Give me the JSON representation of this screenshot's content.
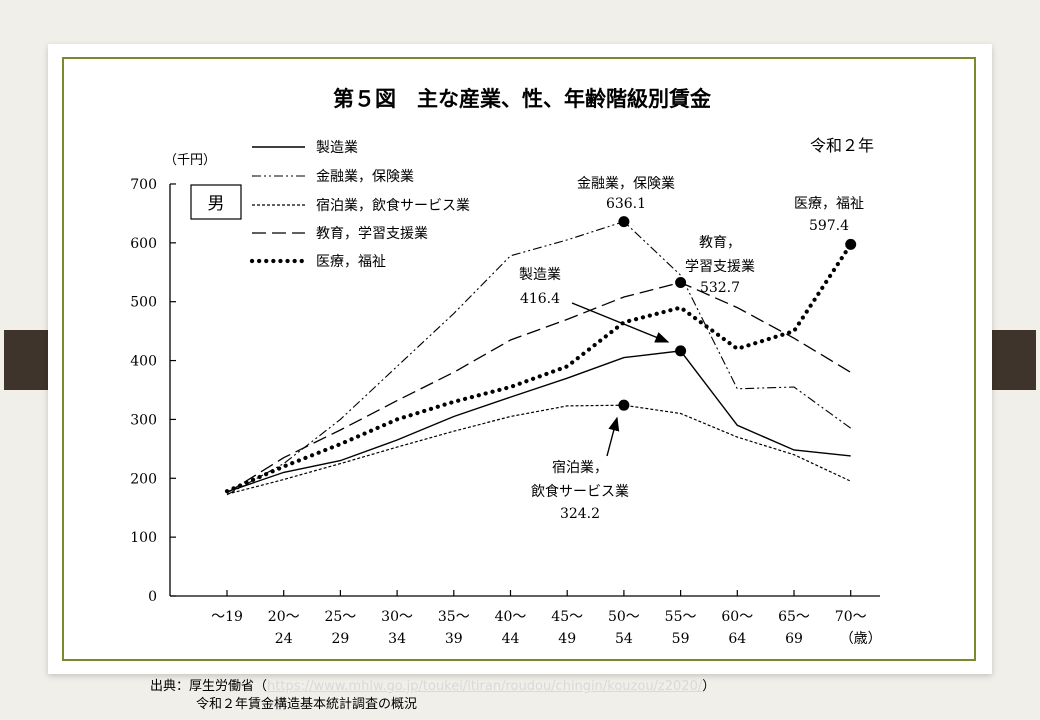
{
  "slide": {
    "source_label": "出典：厚生労働省（",
    "source_url": "https://www.mhlw.go.jp/toukei/itiran/roudou/chingin/kouzou/z2020/",
    "source_close": "）",
    "source_line2": "令和２年賃金構造基本統計調査の概況"
  },
  "chart_data": {
    "type": "line",
    "title": "第５図　主な産業、性、年齢階級別賃金",
    "year_label": "令和２年",
    "gender_label": "男",
    "ylabel": "（千円）",
    "x_unit_label": "（歳）",
    "ylim": [
      0,
      700
    ],
    "yticks": [
      0,
      100,
      200,
      300,
      400,
      500,
      600,
      700
    ],
    "categories": [
      {
        "top": "～19",
        "bottom": ""
      },
      {
        "top": "20～",
        "bottom": "24"
      },
      {
        "top": "25～",
        "bottom": "29"
      },
      {
        "top": "30～",
        "bottom": "34"
      },
      {
        "top": "35～",
        "bottom": "39"
      },
      {
        "top": "40～",
        "bottom": "44"
      },
      {
        "top": "45～",
        "bottom": "49"
      },
      {
        "top": "50～",
        "bottom": "54"
      },
      {
        "top": "55～",
        "bottom": "59"
      },
      {
        "top": "60～",
        "bottom": "64"
      },
      {
        "top": "65～",
        "bottom": "69"
      },
      {
        "top": "70～",
        "bottom": ""
      }
    ],
    "series": [
      {
        "name": "製造業",
        "style": "solid",
        "values": [
          177,
          210,
          230,
          265,
          305,
          338,
          370,
          405,
          416.4,
          290,
          248,
          238
        ]
      },
      {
        "name": "金融業，保険業",
        "style": "dashdot",
        "values": [
          172,
          225,
          300,
          390,
          480,
          578,
          605,
          636.1,
          545,
          352,
          355,
          285
        ]
      },
      {
        "name": "宿泊業，飲食サービス業",
        "style": "dotted-fine",
        "values": [
          173,
          198,
          225,
          253,
          280,
          305,
          323,
          324.2,
          310,
          270,
          240,
          195
        ]
      },
      {
        "name": "教育，学習支援業",
        "style": "dashed",
        "values": [
          175,
          235,
          282,
          332,
          380,
          435,
          470,
          508,
          532.7,
          490,
          438,
          380
        ]
      },
      {
        "name": "医療，福祉",
        "style": "dotted-bold",
        "values": [
          178,
          220,
          258,
          300,
          330,
          355,
          390,
          465,
          490,
          420,
          450,
          597.4
        ]
      }
    ],
    "annotations": [
      {
        "series": "金融業，保険業",
        "category_index": 7,
        "lines": [
          "金融業，保険業",
          "636.1"
        ]
      },
      {
        "series": "教育，学習支援業",
        "category_index": 8,
        "lines": [
          "教育，",
          "学習支援業",
          "532.7"
        ]
      },
      {
        "series": "製造業",
        "category_index": 8,
        "lines": [
          "製造業",
          "416.4"
        ]
      },
      {
        "series": "宿泊業，飲食サービス業",
        "category_index": 7,
        "lines": [
          "宿泊業，",
          "飲食サービス業",
          "324.2"
        ]
      },
      {
        "series": "医療，福祉",
        "category_index": 11,
        "lines": [
          "医療，福祉",
          "597.4"
        ]
      }
    ],
    "colors": {
      "line": "#000000",
      "frame": "#7a8a2e",
      "tab": "#3e342b"
    }
  }
}
